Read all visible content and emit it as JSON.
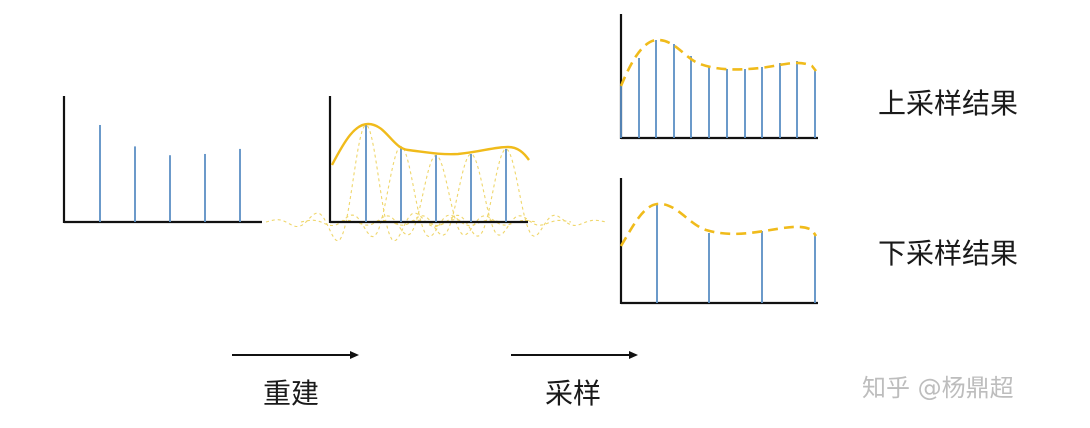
{
  "labels": {
    "upsample_result": "上采样结果",
    "downsample_result": "下采样结果",
    "reconstruct": "重建",
    "sample": "采样"
  },
  "watermark": "知乎 @杨鼎超",
  "colors": {
    "axis": "#111111",
    "stem": "#5b8fc4",
    "curve": "#f0bb1b",
    "kernel": "#efd66b"
  },
  "icons": {
    "arrow_reconstruct": "right-arrow",
    "arrow_sample": "right-arrow"
  },
  "figures": {
    "input_samples": {
      "description": "original discrete samples",
      "values": [
        0.77,
        0.6,
        0.53,
        0.54,
        0.58
      ]
    },
    "reconstruction": {
      "description": "samples with interpolation kernels and reconstructed continuous curve",
      "values": [
        0.77,
        0.6,
        0.53,
        0.54,
        0.58
      ]
    },
    "upsampled": {
      "description": "reconstructed curve resampled at higher rate",
      "sample_count": 12
    },
    "downsampled": {
      "description": "reconstructed curve resampled at lower rate",
      "sample_count": 4
    }
  }
}
